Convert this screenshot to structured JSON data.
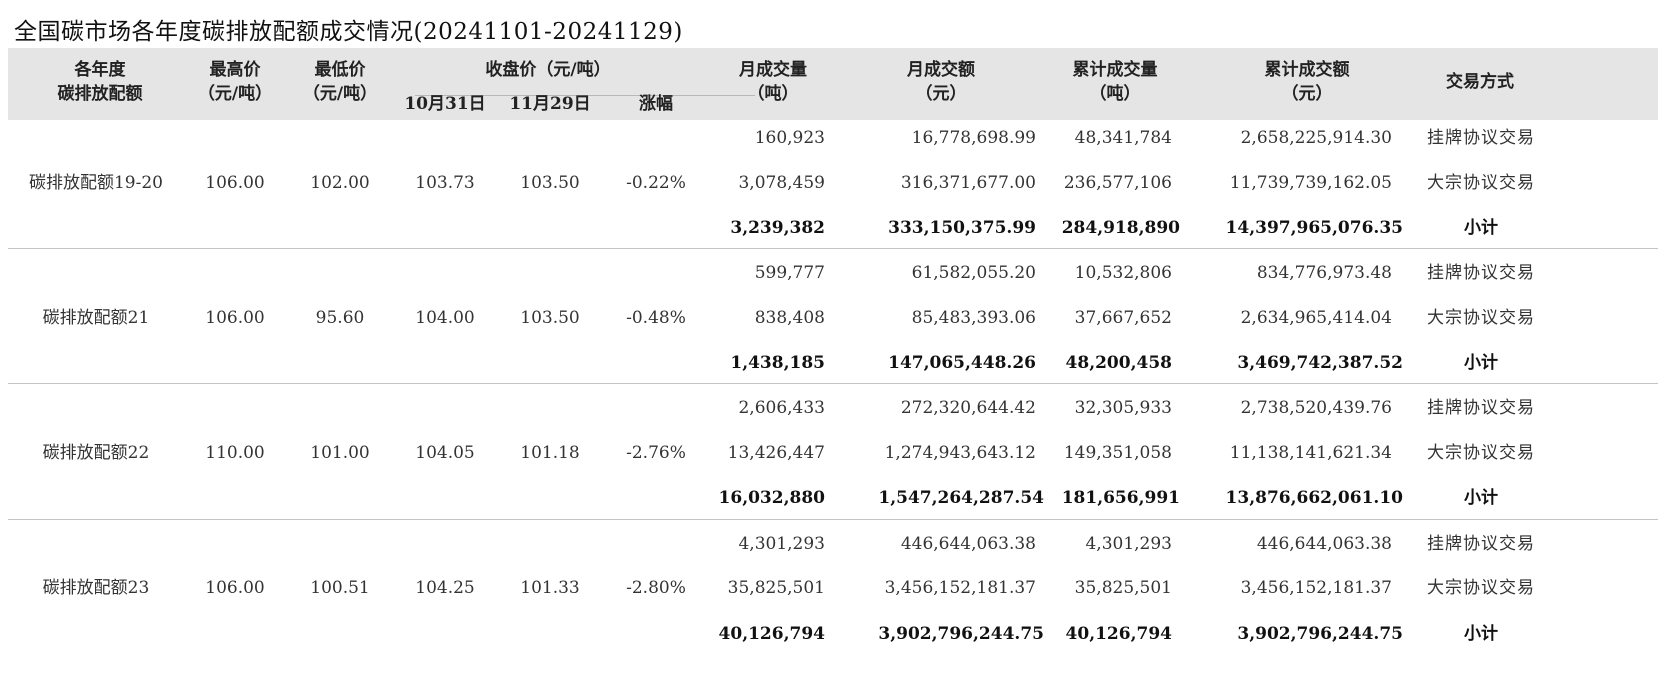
{
  "title": "全国碳市场各年度碳排放配额成交情况(20241101-20241129)",
  "headers": {
    "year_line1": "各年度",
    "year_line2": "碳排放配额",
    "high_line1": "最高价",
    "high_line2": "（元/吨）",
    "low_line1": "最低价",
    "low_line2": "（元/吨）",
    "close_group": "收盘价（元/吨）",
    "close_oct": "10月31日",
    "close_nov": "11月29日",
    "change": "涨幅",
    "month_vol_line1": "月成交量",
    "month_vol_line2": "（吨）",
    "month_amt_line1": "月成交额",
    "month_amt_line2": "（元）",
    "cum_vol_line1": "累计成交量",
    "cum_vol_line2": "（吨）",
    "cum_amt_line1": "累计成交额",
    "cum_amt_line2": "（元）",
    "method": "交易方式"
  },
  "groups": [
    {
      "name": "碳排放配额19-20",
      "high": "106.00",
      "low": "102.00",
      "close_oct": "103.73",
      "close_nov": "103.50",
      "change": "-0.22%",
      "rows": [
        {
          "month_vol": "160,923",
          "month_amt": "16,778,698.99",
          "cum_vol": "48,341,784",
          "cum_amt": "2,658,225,914.30",
          "method": "挂牌协议交易"
        },
        {
          "month_vol": "3,078,459",
          "month_amt": "316,371,677.00",
          "cum_vol": "236,577,106",
          "cum_amt": "11,739,739,162.05",
          "method": "大宗协议交易"
        },
        {
          "month_vol": "3,239,382",
          "month_amt": "333,150,375.99",
          "cum_vol": "284,918,890",
          "cum_amt": "14,397,965,076.35",
          "method": "小计"
        }
      ]
    },
    {
      "name": "碳排放配额21",
      "high": "106.00",
      "low": "95.60",
      "close_oct": "104.00",
      "close_nov": "103.50",
      "change": "-0.48%",
      "rows": [
        {
          "month_vol": "599,777",
          "month_amt": "61,582,055.20",
          "cum_vol": "10,532,806",
          "cum_amt": "834,776,973.48",
          "method": "挂牌协议交易"
        },
        {
          "month_vol": "838,408",
          "month_amt": "85,483,393.06",
          "cum_vol": "37,667,652",
          "cum_amt": "2,634,965,414.04",
          "method": "大宗协议交易"
        },
        {
          "month_vol": "1,438,185",
          "month_amt": "147,065,448.26",
          "cum_vol": "48,200,458",
          "cum_amt": "3,469,742,387.52",
          "method": "小计"
        }
      ]
    },
    {
      "name": "碳排放配额22",
      "high": "110.00",
      "low": "101.00",
      "close_oct": "104.05",
      "close_nov": "101.18",
      "change": "-2.76%",
      "rows": [
        {
          "month_vol": "2,606,433",
          "month_amt": "272,320,644.42",
          "cum_vol": "32,305,933",
          "cum_amt": "2,738,520,439.76",
          "method": "挂牌协议交易"
        },
        {
          "month_vol": "13,426,447",
          "month_amt": "1,274,943,643.12",
          "cum_vol": "149,351,058",
          "cum_amt": "11,138,141,621.34",
          "method": "大宗协议交易"
        },
        {
          "month_vol": "16,032,880",
          "month_amt": "1,547,264,287.54",
          "cum_vol": "181,656,991",
          "cum_amt": "13,876,662,061.10",
          "method": "小计"
        }
      ]
    },
    {
      "name": "碳排放配额23",
      "high": "106.00",
      "low": "100.51",
      "close_oct": "104.25",
      "close_nov": "101.33",
      "change": "-2.80%",
      "rows": [
        {
          "month_vol": "4,301,293",
          "month_amt": "446,644,063.38",
          "cum_vol": "4,301,293",
          "cum_amt": "446,644,063.38",
          "method": "挂牌协议交易"
        },
        {
          "month_vol": "35,825,501",
          "month_amt": "3,456,152,181.37",
          "cum_vol": "35,825,501",
          "cum_amt": "3,456,152,181.37",
          "method": "大宗协议交易"
        },
        {
          "month_vol": "40,126,794",
          "month_amt": "3,902,796,244.75",
          "cum_vol": "40,126,794",
          "cum_amt": "3,902,796,244.75",
          "method": "小计"
        }
      ]
    }
  ]
}
